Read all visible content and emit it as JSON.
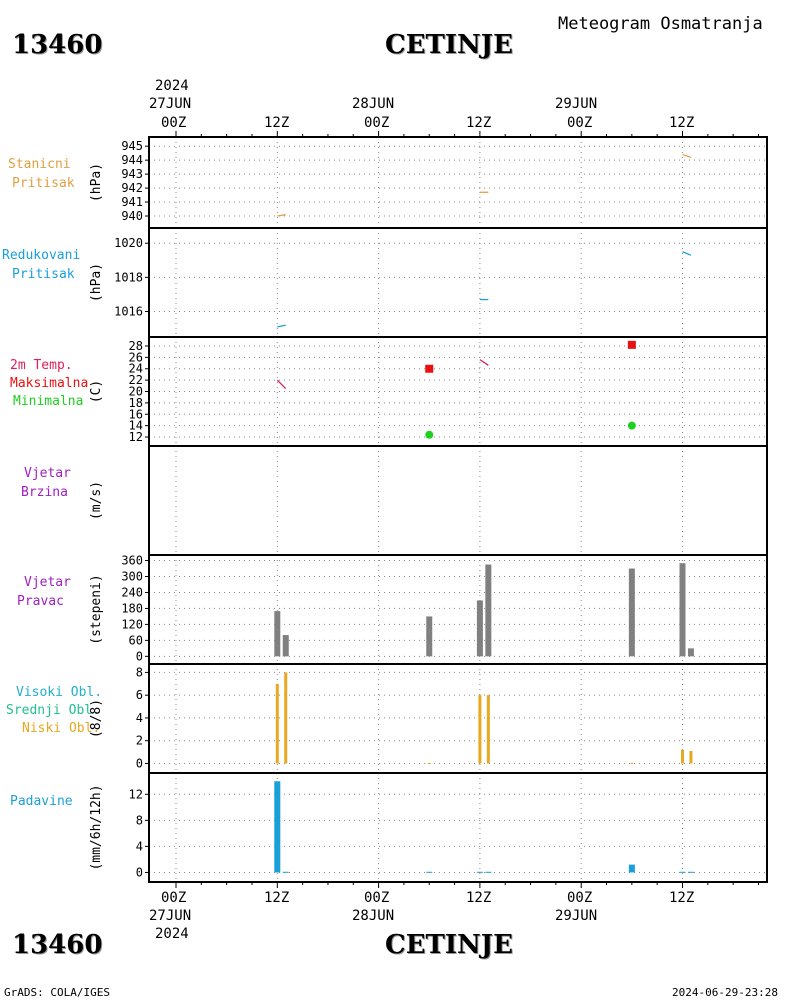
{
  "header": {
    "station_id": "13460",
    "city": "CETINJE",
    "title": "Meteogram Osmatranja",
    "footer_left": "GrADS: COLA/IGES",
    "footer_right": "2024-06-29-23:28"
  },
  "time_axis_top": {
    "year": "2024",
    "days": [
      "27JUN",
      "28JUN",
      "29JUN"
    ],
    "hours": [
      "00Z",
      "12Z",
      "00Z",
      "12Z",
      "00Z",
      "12Z"
    ]
  },
  "time_axis_bottom": {
    "hours": [
      "00Z",
      "12Z",
      "00Z",
      "12Z",
      "00Z",
      "12Z"
    ],
    "days": [
      "27JUN",
      "28JUN",
      "29JUN"
    ],
    "year": "2024"
  },
  "colors": {
    "stanicni": "#e0a040",
    "redukovani": "#1a9fd8",
    "temp": "#e0205a",
    "maks": "#e81010",
    "min": "#20d020",
    "wind": "#a020c0",
    "direction_bar": "#808080",
    "cloud": "#e8a820",
    "precip": "#1a9fd8"
  },
  "chart_data": [
    {
      "type": "line",
      "panel": "stanicni",
      "labels": [
        "Stanicni",
        "Pritisak"
      ],
      "unit": "(hPa)",
      "ylim": [
        939.5,
        945.3
      ],
      "yticks": [
        940,
        941,
        942,
        943,
        944,
        945
      ],
      "series": [
        {
          "name": "Stanicni Pritisak",
          "points": [
            [
              12,
              940.0
            ],
            [
              13,
              940.1
            ],
            [
              36,
              941.7
            ],
            [
              37,
              941.7
            ],
            [
              60,
              944.4
            ],
            [
              61,
              944.2
            ]
          ]
        }
      ]
    },
    {
      "type": "line",
      "panel": "redukovani",
      "labels": [
        "Redukovani",
        "Pritisak"
      ],
      "unit": "(hPa)",
      "ylim": [
        1014.8,
        1020.6
      ],
      "yticks": [
        1016,
        1018,
        1020
      ],
      "series": [
        {
          "name": "Redukovani Pritisak",
          "points": [
            [
              12,
              1015.1
            ],
            [
              13,
              1015.2
            ],
            [
              36,
              1016.7
            ],
            [
              37,
              1016.7
            ],
            [
              60,
              1019.5
            ],
            [
              61,
              1019.3
            ]
          ]
        }
      ]
    },
    {
      "type": "line",
      "panel": "temp",
      "labels": [
        "2m Temp.",
        "Maksimalna",
        "Minimalna"
      ],
      "unit": "(C)",
      "ylim": [
        11.3,
        28.7
      ],
      "yticks": [
        12,
        14,
        16,
        18,
        20,
        22,
        24,
        26,
        28
      ],
      "series": [
        {
          "name": "2m Temp.",
          "points": [
            [
              12,
              22
            ],
            [
              13,
              20.5
            ],
            [
              36,
              25.6
            ],
            [
              37,
              24.6
            ]
          ]
        }
      ],
      "maks": [
        [
          30,
          24.0
        ],
        [
          54,
          28.2
        ]
      ],
      "min": [
        [
          30,
          12.4
        ],
        [
          54,
          14.0
        ]
      ]
    },
    {
      "type": "bar",
      "panel": "brzina",
      "labels": [
        "Vjetar",
        "Brzina"
      ],
      "unit": "(m/s)",
      "ylim": [
        0,
        10
      ],
      "yticks": [],
      "bars": []
    },
    {
      "type": "bar",
      "panel": "pravac",
      "labels": [
        "Vjetar",
        "Pravac"
      ],
      "unit": "(stepeni)",
      "ylim": [
        -10,
        362
      ],
      "yticks": [
        0,
        60,
        120,
        180,
        240,
        300,
        360
      ],
      "bars": [
        [
          12,
          170
        ],
        [
          13,
          80
        ],
        [
          30,
          150
        ],
        [
          36,
          210
        ],
        [
          37,
          345
        ],
        [
          54,
          330
        ],
        [
          60,
          350
        ],
        [
          61,
          30
        ]
      ]
    },
    {
      "type": "bar",
      "panel": "oblaci",
      "labels": [
        "Visoki Obl.",
        "Srednji Obl.",
        "Niski Obl."
      ],
      "unit": "(8/8)",
      "ylim": [
        -0.4,
        8.3
      ],
      "yticks": [
        0,
        2,
        4,
        6,
        8
      ],
      "bars": [
        [
          12,
          7
        ],
        [
          13,
          8
        ],
        [
          30,
          0.05
        ],
        [
          36,
          6
        ],
        [
          37,
          6
        ],
        [
          54,
          0.05
        ],
        [
          60,
          1.2
        ],
        [
          61,
          1.1
        ]
      ]
    },
    {
      "type": "bar",
      "panel": "padavine",
      "labels": [
        "Padavine"
      ],
      "unit": "(mm/6h/12h)",
      "ylim": [
        -0.7,
        14.5
      ],
      "yticks": [
        0,
        4,
        8,
        12
      ],
      "bars": [
        [
          12,
          14
        ],
        [
          13,
          0.1
        ],
        [
          30,
          0.1
        ],
        [
          36,
          0.1
        ],
        [
          37,
          0.1
        ],
        [
          54,
          1.2
        ],
        [
          60,
          0.1
        ],
        [
          61,
          0.1
        ]
      ]
    }
  ]
}
